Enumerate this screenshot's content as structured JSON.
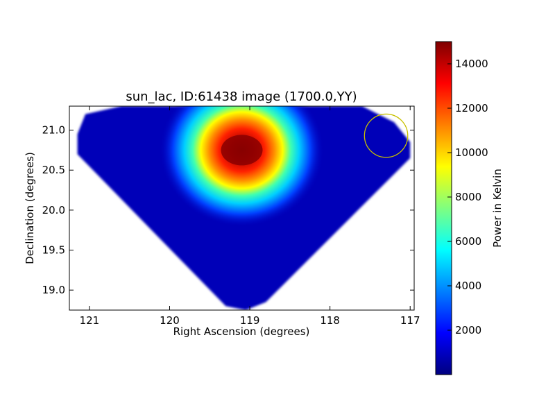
{
  "chart_data": {
    "type": "heatmap",
    "title": "sun_lac, ID:61438 image (1700.0,YY)",
    "xlabel": "Right Ascension (degrees)",
    "ylabel": "Declination (degrees)",
    "xlim": [
      121.25,
      116.95
    ],
    "ylim": [
      18.75,
      21.3
    ],
    "x_ticks": [
      {
        "value": 121,
        "label": "121"
      },
      {
        "value": 120,
        "label": "120"
      },
      {
        "value": 119,
        "label": "119"
      },
      {
        "value": 118,
        "label": "118"
      },
      {
        "value": 117,
        "label": "117"
      }
    ],
    "y_ticks": [
      {
        "value": 19.0,
        "label": "19.0"
      },
      {
        "value": 19.5,
        "label": "19.5"
      },
      {
        "value": 20.0,
        "label": "20.0"
      },
      {
        "value": 20.5,
        "label": "20.5"
      },
      {
        "value": 21.0,
        "label": "21.0"
      }
    ],
    "colormap": "jet",
    "colorbar": {
      "label": "Power in Kelvin",
      "min": 0,
      "max": 15000,
      "ticks": [
        {
          "value": 2000,
          "label": "2000"
        },
        {
          "value": 4000,
          "label": "4000"
        },
        {
          "value": 6000,
          "label": "6000"
        },
        {
          "value": 8000,
          "label": "8000"
        },
        {
          "value": 10000,
          "label": "10000"
        },
        {
          "value": 12000,
          "label": "12000"
        },
        {
          "value": 14000,
          "label": "14000"
        }
      ]
    },
    "background_level": 500,
    "hotspot": {
      "ra": 119.1,
      "dec": 20.75,
      "peak": 15000
    },
    "data_footprint": [
      {
        "ra": 121.15,
        "dec": 20.95
      },
      {
        "ra": 121.05,
        "dec": 21.2
      },
      {
        "ra": 120.6,
        "dec": 21.3
      },
      {
        "ra": 117.6,
        "dec": 21.3
      },
      {
        "ra": 117.2,
        "dec": 21.1
      },
      {
        "ra": 117.0,
        "dec": 20.85
      },
      {
        "ra": 117.0,
        "dec": 20.65
      },
      {
        "ra": 118.8,
        "dec": 18.85
      },
      {
        "ra": 119.05,
        "dec": 18.75
      },
      {
        "ra": 119.3,
        "dec": 18.8
      },
      {
        "ra": 121.15,
        "dec": 20.7
      }
    ],
    "marker_circle": {
      "ra": 117.3,
      "dec": 20.93,
      "radius_deg": 0.27,
      "color": "#c8c000"
    }
  }
}
